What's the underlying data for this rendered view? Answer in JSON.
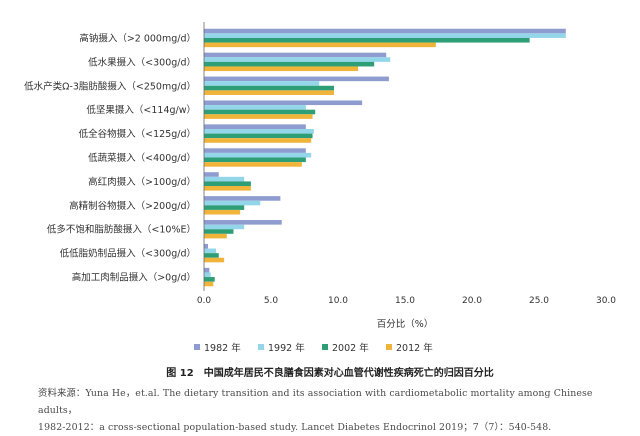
{
  "chart_data": {
    "type": "bar",
    "orientation": "horizontal",
    "xlabel": "百分比（%）",
    "xlim": [
      0,
      30
    ],
    "xticks": [
      "0.0",
      "5.0",
      "10.0",
      "15.0",
      "20.0",
      "25.0",
      "30.0"
    ],
    "xtick_values": [
      0,
      5,
      10,
      15,
      20,
      25,
      30
    ],
    "grid": false,
    "legend_position": "bottom",
    "categories": [
      "高钠摄入（>2 000mg/d）",
      "低水果摄入（<300g/d）",
      "低水产类Ω-3脂肪酸摄入（<250mg/d）",
      "低坚果摄入（<114g/w）",
      "低全谷物摄入（<125g/d）",
      "低蔬菜摄入（<400g/d）",
      "高红肉摄入（>100g/d）",
      "高精制谷物摄入（>200g/d）",
      "低多不饱和脂肪酸摄入（<10%E）",
      "低低脂奶制品摄入（<300g/d）",
      "高加工肉制品摄入（>0g/d）"
    ],
    "series": [
      {
        "name": "1982 年",
        "color": "#8f9ccf",
        "values": [
          27.0,
          13.6,
          13.8,
          11.8,
          7.6,
          7.6,
          1.1,
          5.7,
          5.8,
          0.3,
          0.4
        ]
      },
      {
        "name": "1992 年",
        "color": "#93d6ea",
        "values": [
          27.0,
          13.9,
          8.6,
          7.6,
          8.2,
          8.0,
          3.0,
          4.2,
          3.0,
          0.9,
          0.5
        ]
      },
      {
        "name": "2002 年",
        "color": "#2e9e77",
        "values": [
          24.3,
          12.7,
          9.7,
          8.3,
          8.1,
          7.6,
          3.5,
          3.0,
          2.2,
          1.1,
          0.8
        ]
      },
      {
        "name": "2012 年",
        "color": "#f0b43a",
        "values": [
          17.3,
          11.5,
          9.7,
          8.1,
          8.0,
          7.3,
          3.5,
          2.7,
          1.7,
          1.5,
          0.7
        ]
      }
    ]
  },
  "figure": {
    "caption": "图 12　中国成年居民不良膳食因素对心血管代谢性疾病死亡的归因百分比"
  },
  "source": {
    "line1": "资料来源：Yuna He，et.al. The dietary transition and its association with cardiometabolic mortality among Chinese adults，",
    "line2": "1982-2012：a cross-sectional population-based study. Lancet Diabetes Endocrinol 2019；7（7）：540-548."
  }
}
